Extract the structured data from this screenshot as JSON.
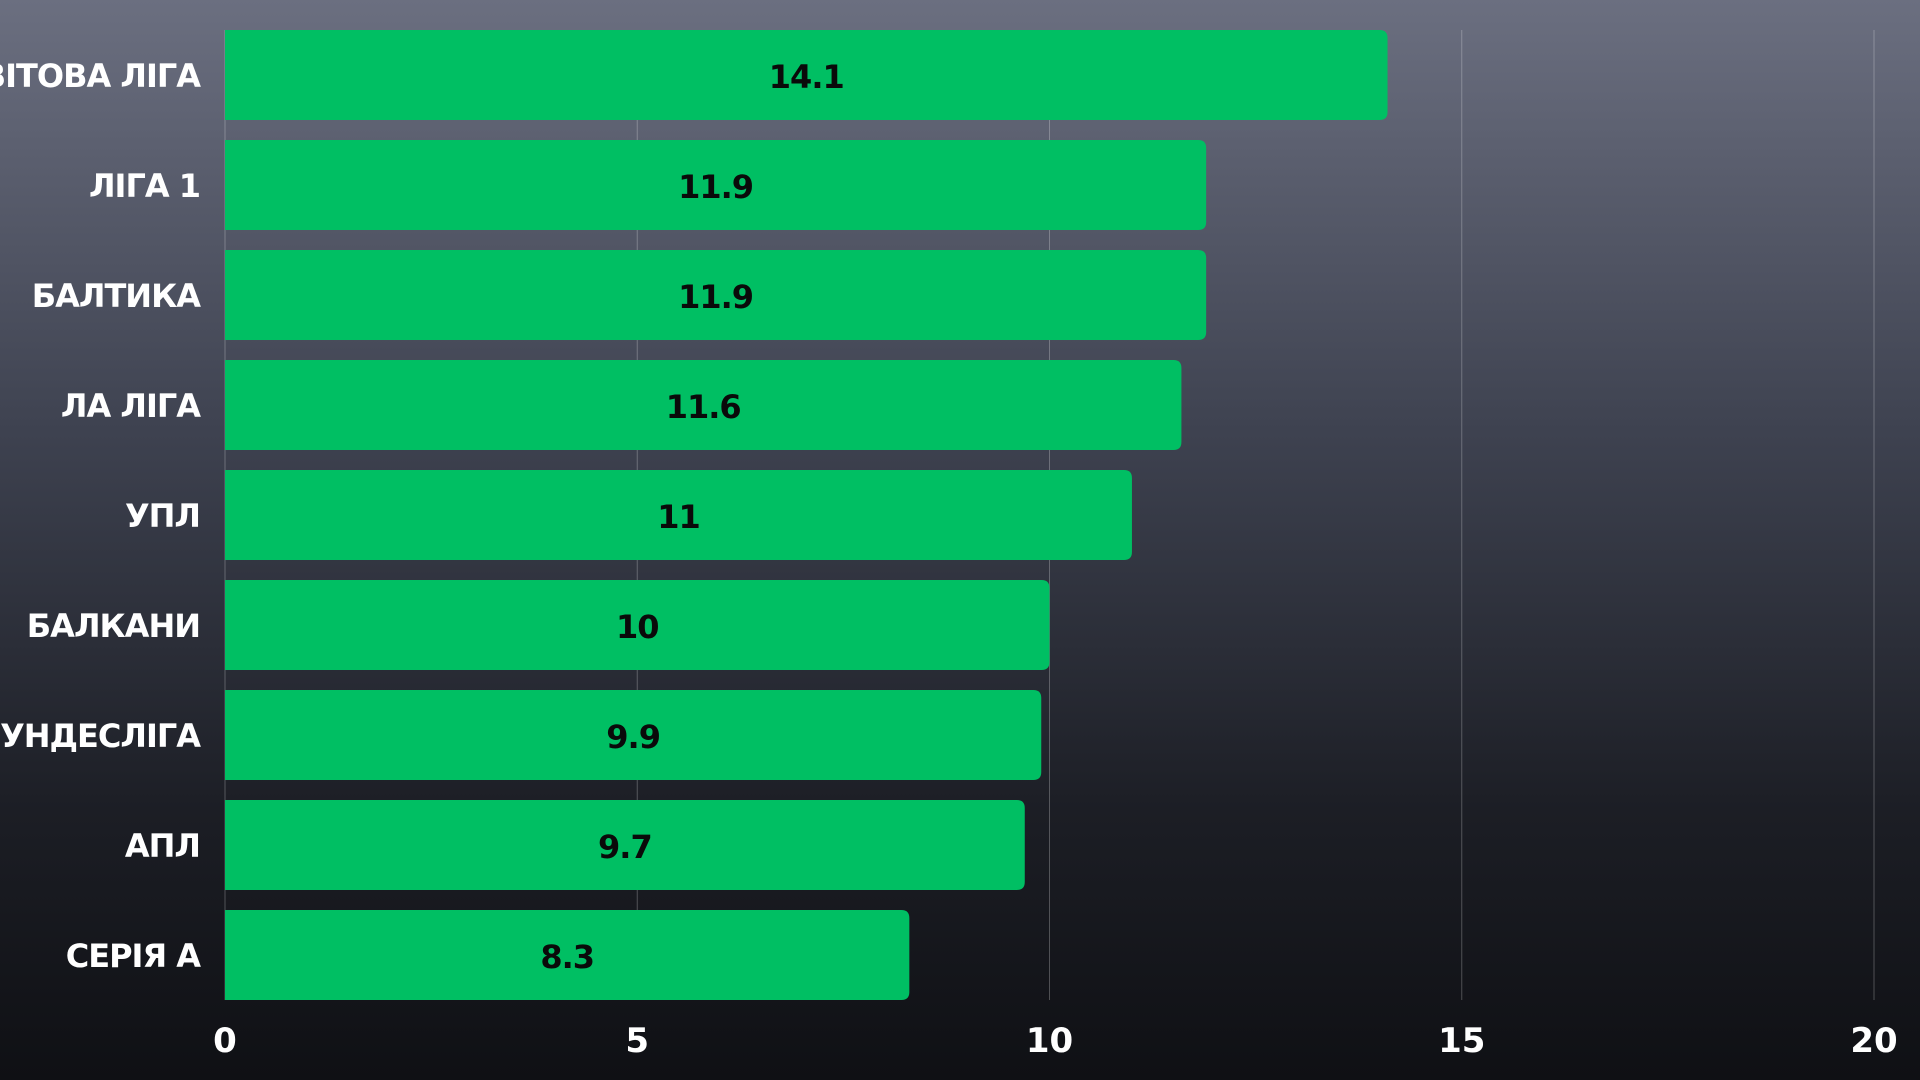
{
  "chart_data": {
    "type": "bar",
    "orientation": "horizontal",
    "categories": [
      "СВІТОВА ЛІГА",
      "ЛІГА 1",
      "БАЛТИКА",
      "ЛА ЛІГА",
      "УПЛ",
      "БАЛКАНИ",
      "БУНДЕСЛІГА",
      "АПЛ",
      "СЕРІЯ А"
    ],
    "values": [
      14.1,
      11.9,
      11.9,
      11.6,
      11,
      10,
      9.9,
      9.7,
      8.3
    ],
    "value_labels": [
      "14.1",
      "11.9",
      "11.9",
      "11.6",
      "11",
      "10",
      "9.9",
      "9.7",
      "8.3"
    ],
    "x_ticks": [
      "0",
      "5",
      "10",
      "15",
      "20"
    ],
    "xlim": [
      0,
      20
    ],
    "grid": true,
    "bar_color": "#00bf63",
    "title": "",
    "xlabel": "",
    "ylabel": ""
  }
}
